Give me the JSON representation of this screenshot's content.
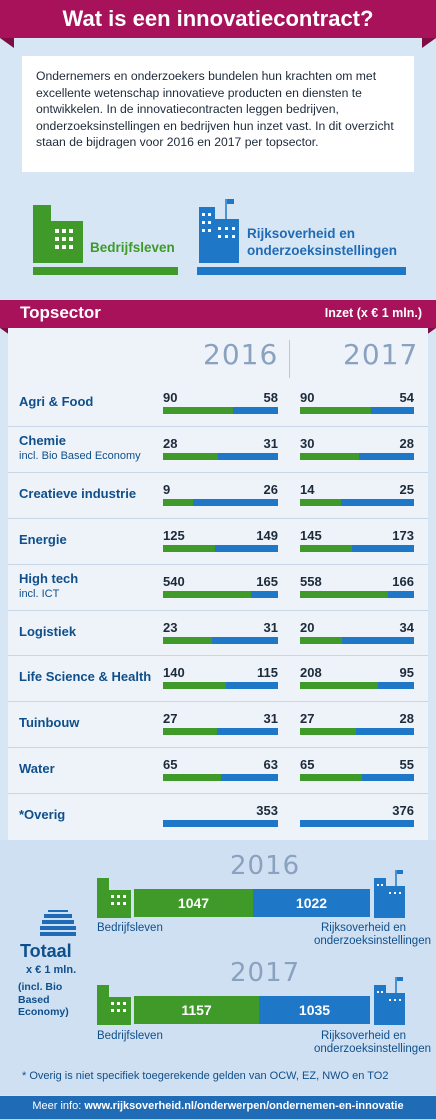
{
  "title": "Wat is een innovatiecontract?",
  "intro": "Ondernemers en onderzoekers bundelen hun krachten om met excellente wetenschap innovatieve producten en diensten te ontwikkelen. In de innovatiecontracten leggen bedrijven, onderzoeksinstellingen en bedrijven hun inzet vast. In dit overzicht staan de bijdragen voor 2016 en 2017 per topsector.",
  "legend": {
    "business": "Bedrijfsleven",
    "government_line1": "Rijksoverheid en",
    "government_line2": "onderzoeksinstellingen"
  },
  "sector_header": {
    "title": "Topsector",
    "unit": "Inzet (x € 1 mln.)"
  },
  "colors": {
    "business": "#3f9a2a",
    "government": "#1f78c7",
    "accent": "#a8125b"
  },
  "chart_data": {
    "type": "bar",
    "title": "Topsector",
    "ylabel": "Inzet (x € 1 mln.)",
    "years": [
      "2016",
      "2017"
    ],
    "series": [
      {
        "name": "Bedrijfsleven"
      },
      {
        "name": "Rijksoverheid en onderzoeksinstellingen"
      }
    ],
    "rows": [
      {
        "name": "Agri & Food",
        "sub": "",
        "y2016": [
          90,
          58
        ],
        "y2017": [
          90,
          54
        ]
      },
      {
        "name": "Chemie",
        "sub": "incl. Bio Based Economy",
        "y2016": [
          28,
          31
        ],
        "y2017": [
          30,
          28
        ]
      },
      {
        "name": "Creatieve industrie",
        "sub": "",
        "y2016": [
          9,
          26
        ],
        "y2017": [
          14,
          25
        ]
      },
      {
        "name": "Energie",
        "sub": "",
        "y2016": [
          125,
          149
        ],
        "y2017": [
          145,
          173
        ]
      },
      {
        "name": "High tech",
        "sub": "incl. ICT",
        "y2016": [
          540,
          165
        ],
        "y2017": [
          558,
          166
        ]
      },
      {
        "name": "Logistiek",
        "sub": "",
        "y2016": [
          23,
          31
        ],
        "y2017": [
          20,
          34
        ]
      },
      {
        "name": "Life Science & Health",
        "sub": "",
        "y2016": [
          140,
          115
        ],
        "y2017": [
          208,
          95
        ]
      },
      {
        "name": "Tuinbouw",
        "sub": "",
        "y2016": [
          27,
          31
        ],
        "y2017": [
          27,
          28
        ]
      },
      {
        "name": "Water",
        "sub": "",
        "y2016": [
          65,
          63
        ],
        "y2017": [
          65,
          55
        ]
      },
      {
        "name": "*Overig",
        "sub": "",
        "y2016": [
          null,
          353
        ],
        "y2017": [
          null,
          376
        ]
      }
    ],
    "totals": {
      "label": "Totaal",
      "unit": "x € 1 mln.",
      "note": "(incl. Bio Based Economy)",
      "y2016": [
        1047,
        1022
      ],
      "y2017": [
        1157,
        1035
      ]
    }
  },
  "totals_labels": {
    "business": "Bedrijfsleven",
    "government_line1": "Rijksoverheid en",
    "government_line2": "onderzoeksinstellingen"
  },
  "footnote": "* Overig is niet specifiek toegerekende gelden van OCW, EZ, NWO en TO2",
  "footer": {
    "prefix": "Meer info: ",
    "url": "www.rijksoverheid.nl/onderwerpen/ondernemen-en-innovatie"
  }
}
